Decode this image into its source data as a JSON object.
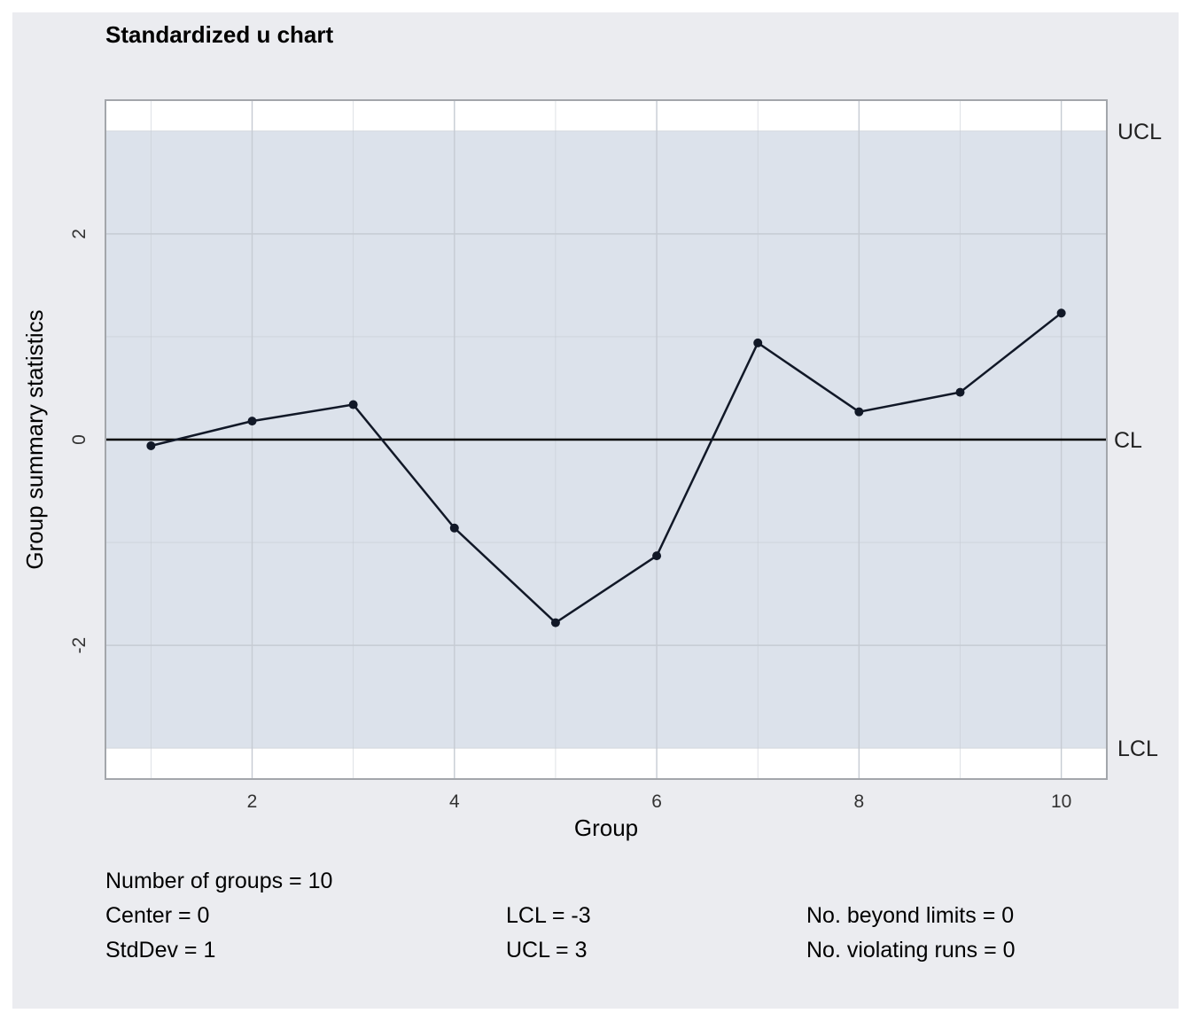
{
  "chart_data": {
    "type": "line",
    "title": "Standardized u chart",
    "xlabel": "Group",
    "ylabel": "Group summary statistics",
    "x": [
      1,
      2,
      3,
      4,
      5,
      6,
      7,
      8,
      9,
      10
    ],
    "series": [
      {
        "values": [
          -0.06,
          0.18,
          0.34,
          -0.86,
          -1.78,
          -1.13,
          0.94,
          0.27,
          0.46,
          1.23
        ]
      }
    ],
    "xlim": [
      0.55,
      10.45
    ],
    "ylim": [
      -3.3,
      3.3
    ],
    "xticks": [
      2,
      4,
      6,
      8,
      10
    ],
    "yticks": [
      -2,
      0,
      2
    ],
    "center": 0,
    "lcl": -3,
    "ucl": 3,
    "limit_labels": {
      "ucl": "UCL",
      "cl": "CL",
      "lcl": "LCL"
    },
    "grid": true,
    "colors": {
      "background": "#ebecf0",
      "band": "#dce2eb",
      "line": "#111827",
      "grid": "#c6cbd3"
    }
  },
  "stats": {
    "groups": "Number of groups = 10",
    "center": "Center = 0",
    "stddev": "StdDev = 1",
    "lcl": "LCL = -3",
    "ucl": "UCL = 3",
    "beyond": "No. beyond limits = 0",
    "runs": "No. violating runs = 0"
  }
}
